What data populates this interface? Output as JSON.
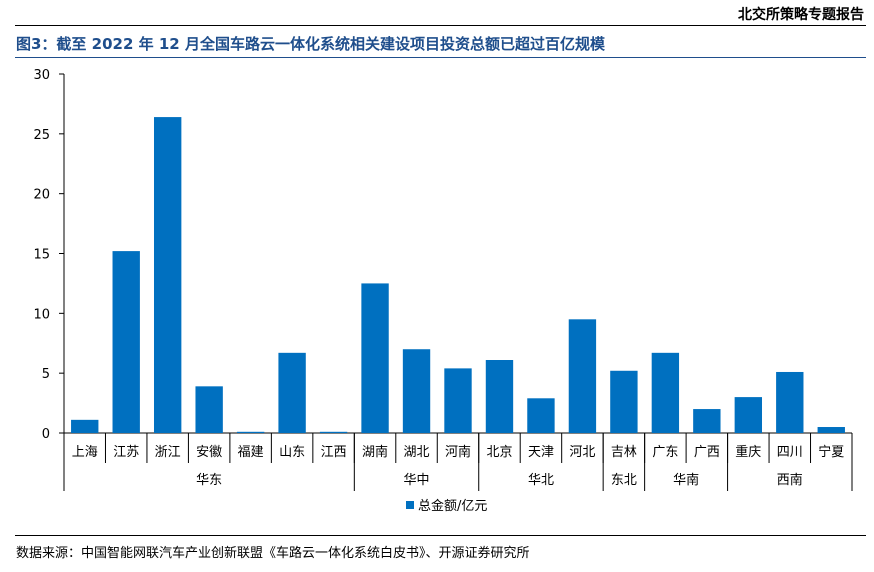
{
  "header": {
    "report_label": "北交所策略专题报告"
  },
  "figure": {
    "title": "图3：截至 2022 年 12 月全国车路云一体化系统相关建设项目投资总额已超过百亿规模"
  },
  "source": {
    "text": "数据来源：中国智能网联汽车产业创新联盟《车路云一体化系统白皮书》、开源证券研究所"
  },
  "colors": {
    "bar": "#0070C0",
    "title": "#1f4e8c"
  },
  "chart_data": {
    "type": "bar",
    "categories": [
      "上海",
      "江苏",
      "浙江",
      "安徽",
      "福建",
      "山东",
      "江西",
      "湖南",
      "湖北",
      "河南",
      "北京",
      "天津",
      "河北",
      "吉林",
      "广东",
      "广西",
      "重庆",
      "四川",
      "宁夏"
    ],
    "groups": [
      {
        "label": "华东",
        "count": 7
      },
      {
        "label": "华中",
        "count": 3
      },
      {
        "label": "华北",
        "count": 3
      },
      {
        "label": "东北",
        "count": 1
      },
      {
        "label": "华南",
        "count": 2
      },
      {
        "label": "西南",
        "count": 3
      }
    ],
    "series": [
      {
        "name": "总金额/亿元",
        "values": [
          1.1,
          15.2,
          26.4,
          3.9,
          0.1,
          6.7,
          0.1,
          12.5,
          7.0,
          5.4,
          6.1,
          2.9,
          9.5,
          5.2,
          6.7,
          2.0,
          3.0,
          5.1,
          0.5
        ]
      }
    ],
    "ylim": [
      0,
      30
    ],
    "yticks": [
      0,
      5,
      10,
      15,
      20,
      25,
      30
    ],
    "legend_position": "bottom-center",
    "grid": false
  }
}
